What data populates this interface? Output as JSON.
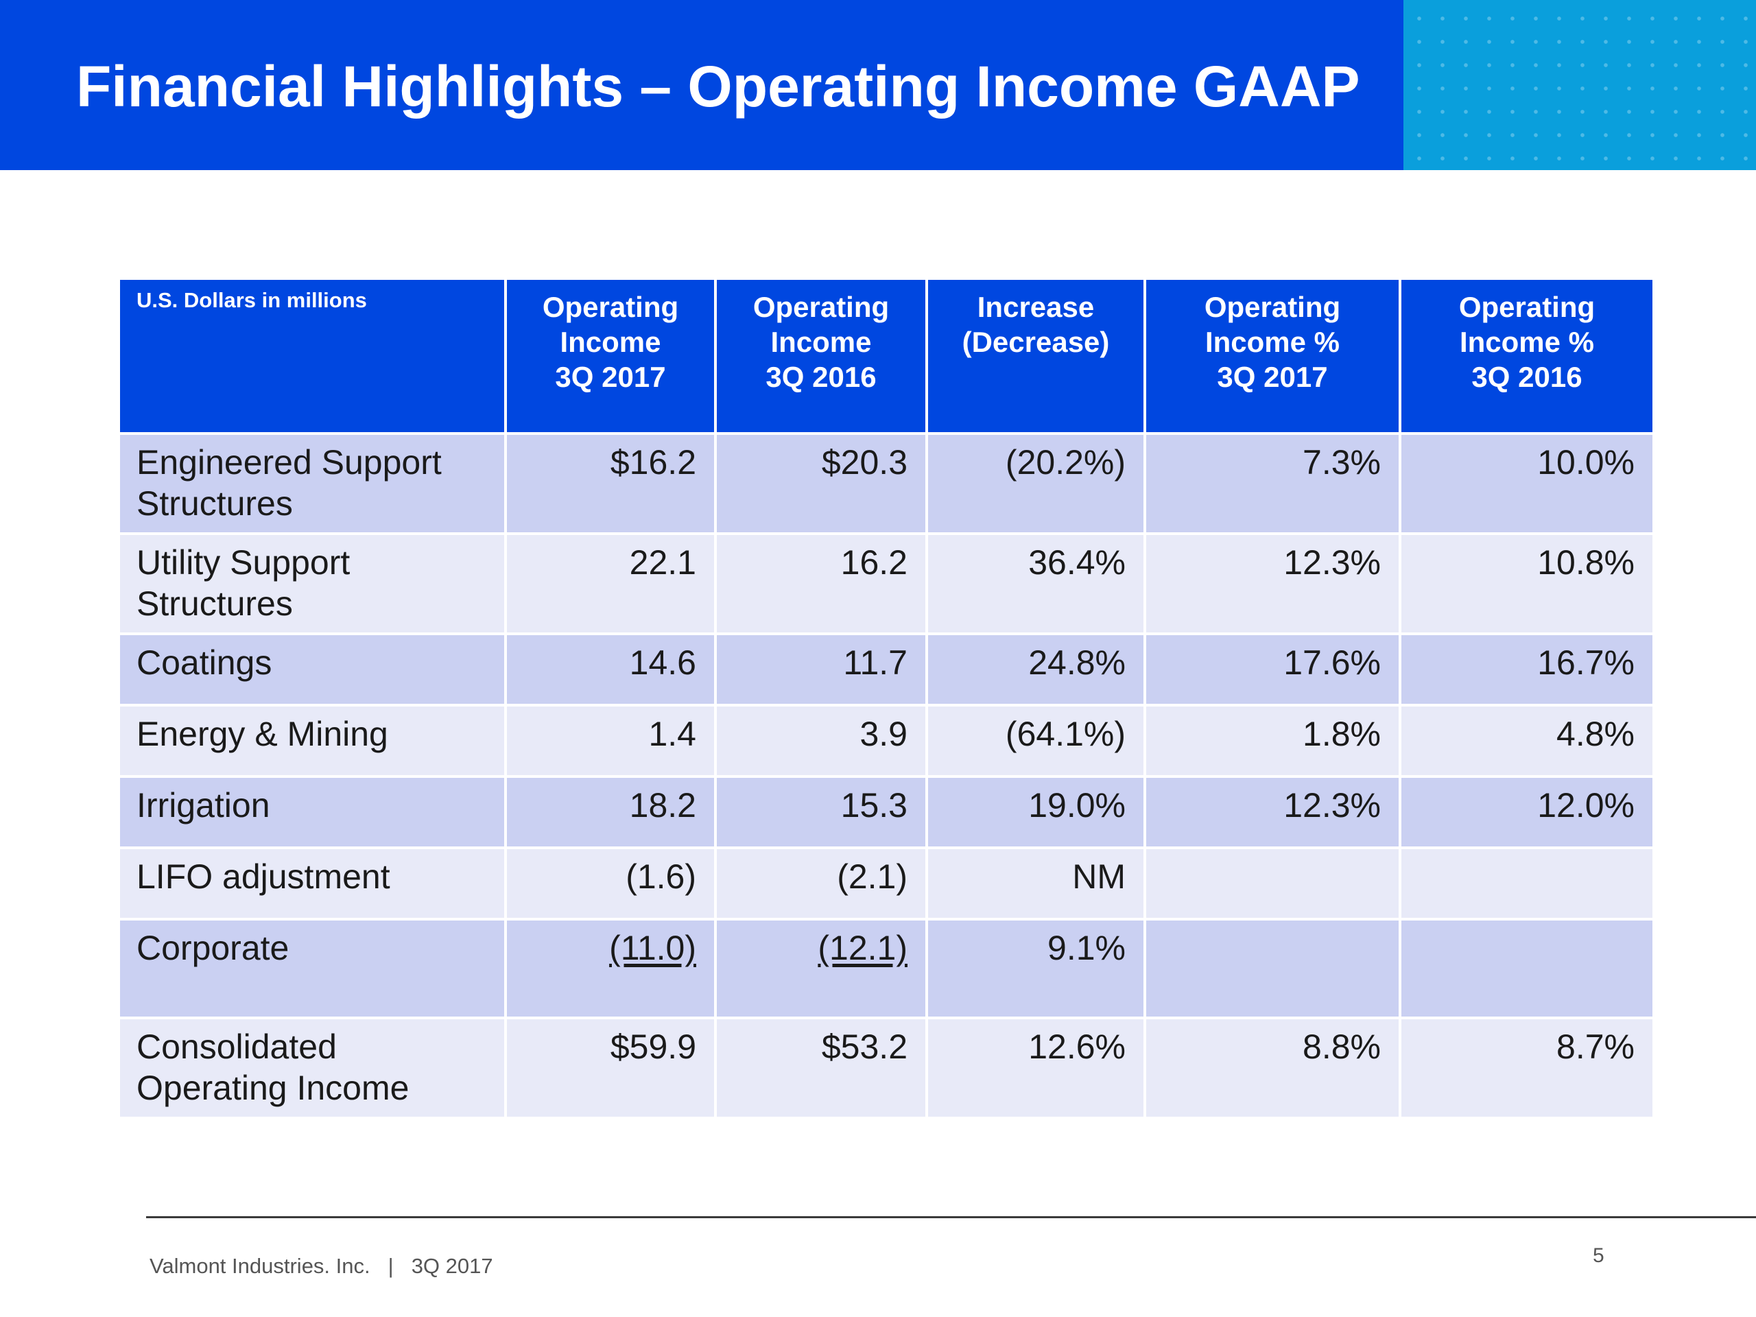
{
  "header": {
    "title": "Financial Highlights – Operating Income GAAP"
  },
  "table": {
    "units_label": "U.S. Dollars in millions",
    "columns": [
      [
        "Operating",
        "Income",
        "3Q 2017"
      ],
      [
        "Operating",
        "Income",
        "3Q 2016"
      ],
      [
        "Increase",
        "(Decrease)"
      ],
      [
        "Operating",
        "Income %",
        "3Q 2017"
      ],
      [
        "Operating",
        "Income %",
        "3Q 2016"
      ]
    ],
    "rows": [
      {
        "label": [
          "Engineered Support",
          "Structures"
        ],
        "values": [
          "$16.2",
          "$20.3",
          "(20.2%)",
          "7.3%",
          "10.0%"
        ]
      },
      {
        "label": [
          "Utility Support",
          "Structures"
        ],
        "values": [
          "22.1",
          "16.2",
          "36.4%",
          "12.3%",
          "10.8%"
        ]
      },
      {
        "label": [
          "Coatings"
        ],
        "values": [
          "14.6",
          "11.7",
          "24.8%",
          "17.6%",
          "16.7%"
        ]
      },
      {
        "label": [
          "Energy & Mining"
        ],
        "values": [
          "1.4",
          "3.9",
          "(64.1%)",
          "1.8%",
          "4.8%"
        ]
      },
      {
        "label": [
          "Irrigation"
        ],
        "values": [
          "18.2",
          "15.3",
          "19.0%",
          "12.3%",
          "12.0%"
        ]
      },
      {
        "label": [
          "LIFO adjustment"
        ],
        "values": [
          "(1.6)",
          "(2.1)",
          "NM",
          "",
          ""
        ]
      },
      {
        "label": [
          "Corporate"
        ],
        "values": [
          "(11.0)",
          "(12.1)",
          "9.1%",
          "",
          ""
        ]
      },
      {
        "label": [
          "Consolidated",
          "Operating Income"
        ],
        "values": [
          "$59.9",
          "$53.2",
          "12.6%",
          "8.8%",
          "8.7%"
        ]
      }
    ]
  },
  "footer": {
    "company": "Valmont Industries. Inc.",
    "separator": "|",
    "period": "3Q 2017",
    "page_number": "5"
  },
  "colors": {
    "header_blue": "#0047e0",
    "accent_cyan": "#0a9fdc",
    "row_dark": "#cad0f2",
    "row_light": "#e8eaf8"
  }
}
